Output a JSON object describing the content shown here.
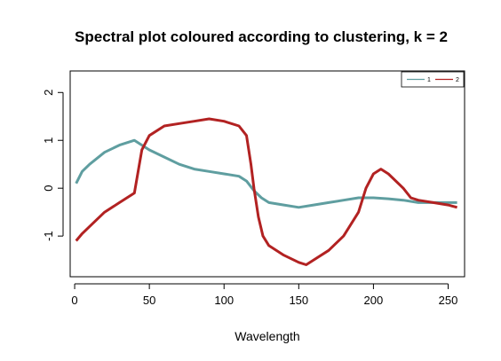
{
  "chart_data": {
    "type": "line",
    "title": "Spectral plot coloured according to clustering, k = 2",
    "xlabel": "Wavelength",
    "ylabel": "",
    "xlim": [
      -3,
      261
    ],
    "ylim": [
      -1.85,
      2.45
    ],
    "x_ticks": [
      {
        "value": 0,
        "label": "0"
      },
      {
        "value": 50,
        "label": "50"
      },
      {
        "value": 100,
        "label": "100"
      },
      {
        "value": 150,
        "label": "150"
      },
      {
        "value": 200,
        "label": "200"
      },
      {
        "value": 250,
        "label": "250"
      }
    ],
    "y_ticks": [
      {
        "value": -1,
        "label": "-1"
      },
      {
        "value": 0,
        "label": "0"
      },
      {
        "value": 1,
        "label": "1"
      },
      {
        "value": 2,
        "label": "2"
      }
    ],
    "legend": {
      "position": "top-right",
      "entries": [
        {
          "label": "1",
          "color": "#5f9ea0"
        },
        {
          "label": "2",
          "color": "#b22222"
        }
      ]
    },
    "series": [
      {
        "name": "1",
        "color": "#5f9ea0",
        "x": [
          1,
          5,
          10,
          20,
          30,
          40,
          50,
          60,
          70,
          80,
          90,
          100,
          110,
          115,
          120,
          125,
          130,
          140,
          150,
          160,
          170,
          180,
          190,
          200,
          210,
          220,
          230,
          240,
          250,
          256
        ],
        "values": [
          0.1,
          0.35,
          0.5,
          0.75,
          0.9,
          1.0,
          0.8,
          0.65,
          0.5,
          0.4,
          0.35,
          0.3,
          0.25,
          0.15,
          -0.05,
          -0.2,
          -0.3,
          -0.35,
          -0.4,
          -0.35,
          -0.3,
          -0.25,
          -0.2,
          -0.2,
          -0.22,
          -0.25,
          -0.3,
          -0.3,
          -0.3,
          -0.3
        ]
      },
      {
        "name": "2",
        "color": "#b22222",
        "x": [
          1,
          5,
          10,
          20,
          30,
          40,
          45,
          50,
          60,
          70,
          80,
          90,
          100,
          110,
          115,
          118,
          120,
          123,
          126,
          130,
          140,
          150,
          155,
          160,
          170,
          180,
          190,
          195,
          200,
          205,
          210,
          220,
          225,
          230,
          240,
          250,
          256
        ],
        "values": [
          -1.1,
          -0.95,
          -0.8,
          -0.5,
          -0.3,
          -0.1,
          0.8,
          1.1,
          1.3,
          1.35,
          1.4,
          1.45,
          1.4,
          1.3,
          1.1,
          0.5,
          0.0,
          -0.6,
          -1.0,
          -1.2,
          -1.4,
          -1.55,
          -1.6,
          -1.5,
          -1.3,
          -1.0,
          -0.5,
          0.0,
          0.3,
          0.4,
          0.3,
          0.0,
          -0.2,
          -0.25,
          -0.3,
          -0.35,
          -0.4
        ]
      }
    ]
  }
}
